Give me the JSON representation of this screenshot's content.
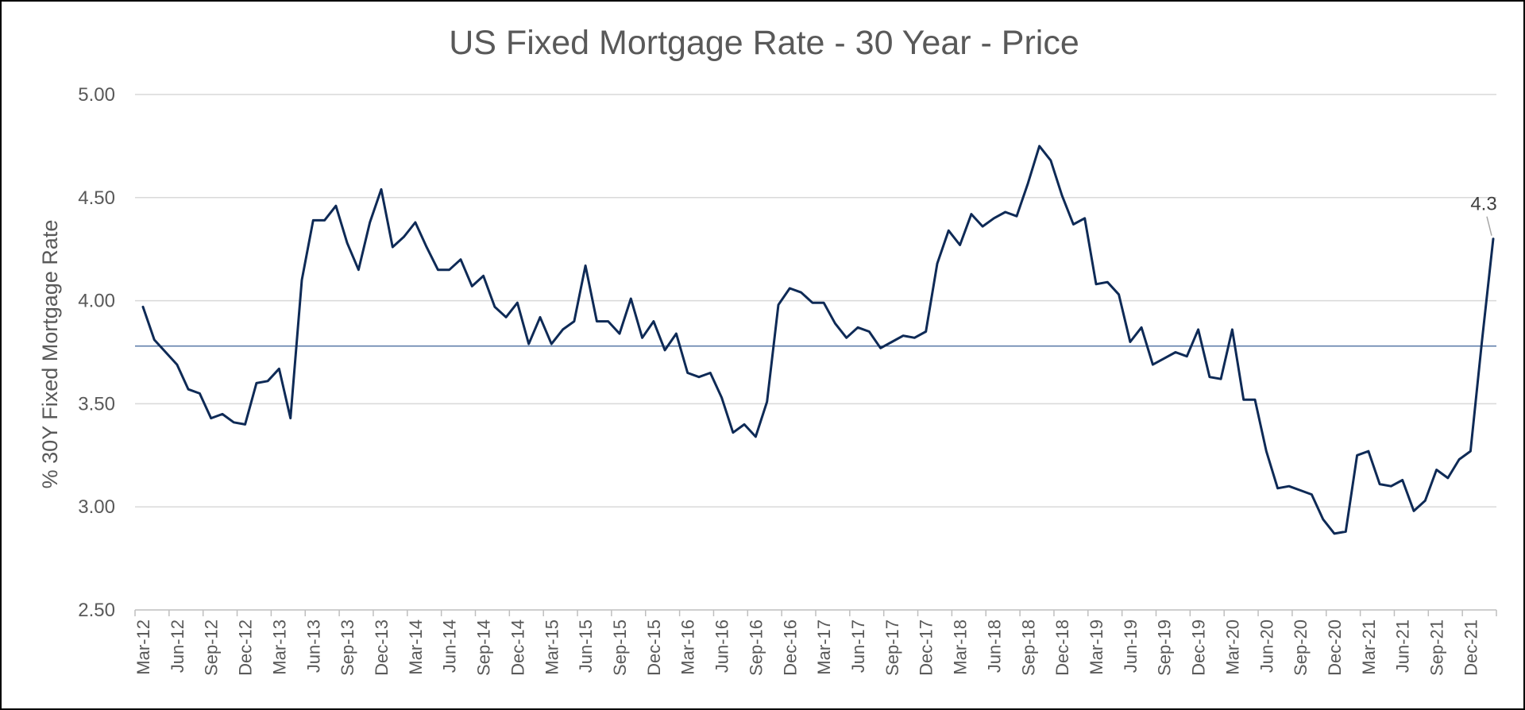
{
  "chart_data": {
    "type": "line",
    "title": "US Fixed Mortgage Rate - 30 Year - Price",
    "xlabel": "",
    "ylabel": "% 30Y Fixed Mortgage Rate",
    "ylim": [
      2.5,
      5.0
    ],
    "y_ticks": [
      "2.50",
      "3.00",
      "3.50",
      "4.00",
      "4.50",
      "5.00"
    ],
    "x_tick_labels": [
      "Mar-12",
      "Jun-12",
      "Sep-12",
      "Dec-12",
      "Mar-13",
      "Jun-13",
      "Sep-13",
      "Dec-13",
      "Mar-14",
      "Jun-14",
      "Sep-14",
      "Dec-14",
      "Mar-15",
      "Jun-15",
      "Sep-15",
      "Dec-15",
      "Mar-16",
      "Jun-16",
      "Sep-16",
      "Dec-16",
      "Mar-17",
      "Jun-17",
      "Sep-17",
      "Dec-17",
      "Mar-18",
      "Jun-18",
      "Sep-18",
      "Dec-18",
      "Mar-19",
      "Jun-19",
      "Sep-19",
      "Dec-19",
      "Mar-20",
      "Jun-20",
      "Sep-20",
      "Dec-20",
      "Mar-21",
      "Jun-21",
      "Sep-21",
      "Dec-21"
    ],
    "grid": "horizontal",
    "average_line": 3.78,
    "last_value_label": "4.3",
    "series": [
      {
        "color": "#0E2A56",
        "values": [
          3.97,
          3.81,
          3.75,
          3.69,
          3.57,
          3.55,
          3.43,
          3.45,
          3.41,
          3.4,
          3.6,
          3.61,
          3.67,
          3.43,
          4.1,
          4.39,
          4.39,
          4.46,
          4.28,
          4.15,
          4.38,
          4.54,
          4.26,
          4.31,
          4.38,
          4.26,
          4.15,
          4.15,
          4.2,
          4.07,
          4.12,
          3.97,
          3.92,
          3.99,
          3.79,
          3.92,
          3.79,
          3.86,
          3.9,
          4.17,
          3.9,
          3.9,
          3.84,
          4.01,
          3.82,
          3.9,
          3.76,
          3.84,
          3.65,
          3.63,
          3.65,
          3.53,
          3.36,
          3.4,
          3.34,
          3.51,
          3.98,
          4.06,
          4.04,
          3.99,
          3.99,
          3.89,
          3.82,
          3.87,
          3.85,
          3.77,
          3.8,
          3.83,
          3.82,
          3.85,
          4.18,
          4.34,
          4.27,
          4.42,
          4.36,
          4.4,
          4.43,
          4.41,
          4.57,
          4.75,
          4.68,
          4.51,
          4.37,
          4.4,
          4.08,
          4.09,
          4.03,
          3.8,
          3.87,
          3.69,
          3.72,
          3.75,
          3.73,
          3.86,
          3.63,
          3.62,
          3.86,
          3.52,
          3.52,
          3.27,
          3.09,
          3.1,
          3.08,
          3.06,
          2.94,
          2.87,
          2.88,
          3.25,
          3.27,
          3.11,
          3.1,
          3.13,
          2.98,
          3.03,
          3.18,
          3.14,
          3.23,
          3.27,
          3.8,
          4.3
        ]
      }
    ]
  },
  "colors": {
    "line": "#0E2A56",
    "average_line": "#5B7BA8",
    "grid": "#D9D9D9",
    "axis": "#BFBFBF",
    "text": "#595959"
  }
}
